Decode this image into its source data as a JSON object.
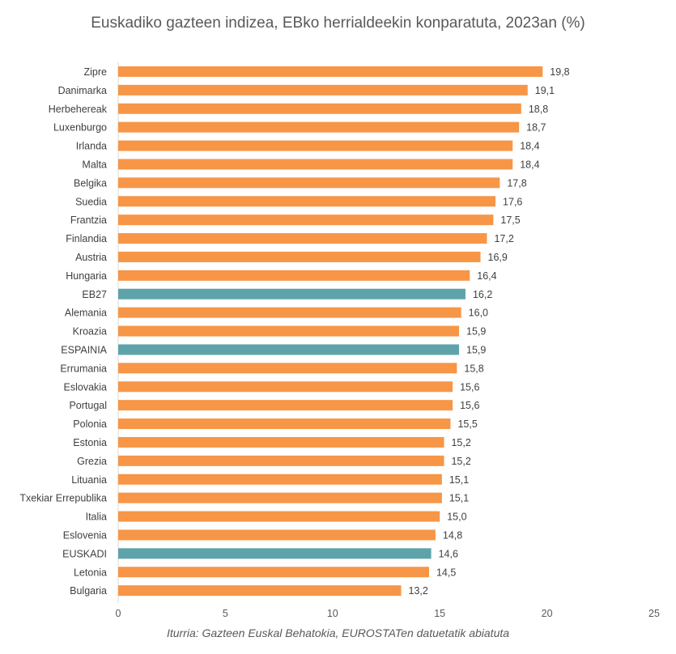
{
  "chart_data": {
    "type": "bar",
    "orientation": "horizontal",
    "title": "Euskadiko gazteen indizea, EBko herrialdeekin konparatuta, 2023an (%)",
    "source": "Iturria: Gazteen Euskal Behatokia, EUROSTATen datuetatik abiatuta",
    "xlim": [
      0,
      25
    ],
    "xticks": [
      0,
      5,
      10,
      15,
      20,
      25
    ],
    "grid": false,
    "colors": {
      "default": "#F79646",
      "highlight": "#5FA3AA"
    },
    "categories": [
      "Zipre",
      "Danimarka",
      "Herbehereak",
      "Luxenburgo",
      "Irlanda",
      "Malta",
      "Belgika",
      "Suedia",
      "Frantzia",
      "Finlandia",
      "Austria",
      "Hungaria",
      "EB27",
      "Alemania",
      "Kroazia",
      "ESPAINIA",
      "Errumania",
      "Eslovakia",
      "Portugal",
      "Polonia",
      "Estonia",
      "Grezia",
      "Lituania",
      "Txekiar Errepublika",
      "Italia",
      "Eslovenia",
      "EUSKADI",
      "Letonia",
      "Bulgaria"
    ],
    "values": [
      19.8,
      19.1,
      18.8,
      18.7,
      18.4,
      18.4,
      17.8,
      17.6,
      17.5,
      17.2,
      16.9,
      16.4,
      16.2,
      16.0,
      15.9,
      15.9,
      15.8,
      15.6,
      15.6,
      15.5,
      15.2,
      15.2,
      15.1,
      15.1,
      15.0,
      14.8,
      14.6,
      14.5,
      13.2
    ],
    "value_labels": [
      "19,8",
      "19,1",
      "18,8",
      "18,7",
      "18,4",
      "18,4",
      "17,8",
      "17,6",
      "17,5",
      "17,2",
      "16,9",
      "16,4",
      "16,2",
      "16,0",
      "15,9",
      "15,9",
      "15,8",
      "15,6",
      "15,6",
      "15,5",
      "15,2",
      "15,2",
      "15,1",
      "15,1",
      "15,0",
      "14,8",
      "14,6",
      "14,5",
      "13,2"
    ],
    "highlighted": [
      "EB27",
      "ESPAINIA",
      "EUSKADI"
    ]
  }
}
